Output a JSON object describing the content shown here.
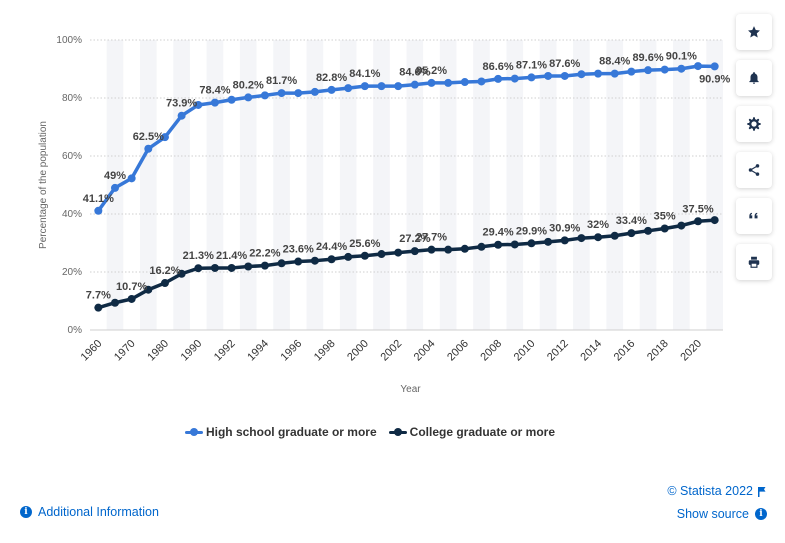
{
  "chart_data": {
    "type": "line",
    "title": "",
    "xlabel": "Year",
    "ylabel": "Percentage of the population",
    "ylim": [
      0,
      100
    ],
    "y_ticks": [
      "0%",
      "20%",
      "40%",
      "60%",
      "80%",
      "100%"
    ],
    "x": [
      1960,
      1965,
      1970,
      1975,
      1980,
      1985,
      1990,
      1991,
      1992,
      1993,
      1994,
      1995,
      1996,
      1997,
      1998,
      1999,
      2000,
      2001,
      2002,
      2003,
      2004,
      2005,
      2006,
      2007,
      2008,
      2009,
      2010,
      2011,
      2012,
      2013,
      2014,
      2015,
      2016,
      2017,
      2018,
      2019,
      2020,
      2021
    ],
    "x_tick_labels": [
      "1960",
      "1970",
      "1980",
      "1990",
      "1992",
      "1994",
      "1996",
      "1998",
      "2000",
      "2002",
      "2004",
      "2006",
      "2008",
      "2010",
      "2012",
      "2014",
      "2016",
      "2018",
      "2020"
    ],
    "x_tick_indices": [
      0,
      2,
      4,
      6,
      8,
      10,
      12,
      14,
      16,
      18,
      20,
      22,
      24,
      26,
      28,
      30,
      32,
      34,
      36
    ],
    "grid": true,
    "legend_position": "bottom",
    "series": [
      {
        "name": "High school graduate or more",
        "color": "#3778d8",
        "values": [
          41.1,
          49.0,
          52.3,
          62.5,
          66.5,
          73.9,
          77.6,
          78.4,
          79.4,
          80.2,
          80.9,
          81.7,
          81.7,
          82.1,
          82.8,
          83.4,
          84.1,
          84.1,
          84.1,
          84.6,
          85.2,
          85.2,
          85.5,
          85.7,
          86.6,
          86.7,
          87.1,
          87.6,
          87.6,
          88.2,
          88.4,
          88.4,
          89.1,
          89.6,
          89.8,
          90.1,
          91.0,
          90.9
        ],
        "labels": [
          {
            "i": 0,
            "text": "41.1%"
          },
          {
            "i": 1,
            "text": "49%"
          },
          {
            "i": 3,
            "text": "62.5%"
          },
          {
            "i": 5,
            "text": "73.9%"
          },
          {
            "i": 7,
            "text": "78.4%"
          },
          {
            "i": 9,
            "text": "80.2%"
          },
          {
            "i": 11,
            "text": "81.7%"
          },
          {
            "i": 14,
            "text": "82.8%"
          },
          {
            "i": 16,
            "text": "84.1%"
          },
          {
            "i": 19,
            "text": "84.6%"
          },
          {
            "i": 20,
            "text": "85.2%"
          },
          {
            "i": 24,
            "text": "86.6%"
          },
          {
            "i": 26,
            "text": "87.1%"
          },
          {
            "i": 28,
            "text": "87.6%"
          },
          {
            "i": 31,
            "text": "88.4%"
          },
          {
            "i": 33,
            "text": "89.6%"
          },
          {
            "i": 35,
            "text": "90.1%"
          },
          {
            "i": 37,
            "text": "90.9%"
          }
        ]
      },
      {
        "name": "College graduate or more",
        "color": "#0f2a44",
        "values": [
          7.7,
          9.4,
          10.7,
          13.9,
          16.2,
          19.4,
          21.3,
          21.4,
          21.4,
          21.9,
          22.2,
          23.0,
          23.6,
          23.9,
          24.4,
          25.2,
          25.6,
          26.2,
          26.7,
          27.2,
          27.7,
          27.7,
          28.0,
          28.7,
          29.4,
          29.5,
          29.9,
          30.4,
          30.9,
          31.7,
          32.0,
          32.5,
          33.4,
          34.2,
          35.0,
          36.0,
          37.5,
          37.9
        ],
        "labels": [
          {
            "i": 0,
            "text": "7.7%"
          },
          {
            "i": 2,
            "text": "10.7%"
          },
          {
            "i": 4,
            "text": "16.2%"
          },
          {
            "i": 6,
            "text": "21.3%"
          },
          {
            "i": 8,
            "text": "21.4%"
          },
          {
            "i": 10,
            "text": "22.2%"
          },
          {
            "i": 12,
            "text": "23.6%"
          },
          {
            "i": 14,
            "text": "24.4%"
          },
          {
            "i": 16,
            "text": "25.6%"
          },
          {
            "i": 19,
            "text": "27.2%"
          },
          {
            "i": 20,
            "text": "27.7%"
          },
          {
            "i": 24,
            "text": "29.4%"
          },
          {
            "i": 26,
            "text": "29.9%"
          },
          {
            "i": 28,
            "text": "30.9%"
          },
          {
            "i": 30,
            "text": "32%"
          },
          {
            "i": 32,
            "text": "33.4%"
          },
          {
            "i": 34,
            "text": "35%"
          },
          {
            "i": 36,
            "text": "37.5%"
          }
        ]
      }
    ]
  },
  "legend": {
    "high_school": "High school graduate or more",
    "college": "College graduate or more"
  },
  "sidebar": {
    "icons": [
      "star-icon",
      "bell-icon",
      "gear-icon",
      "share-icon",
      "quote-icon",
      "print-icon"
    ]
  },
  "footer": {
    "additional_info": "Additional Information",
    "credits": "© Statista 2022",
    "show_source": "Show source"
  },
  "colors": {
    "accent": "#0066cc",
    "series_light": "#3778d8",
    "series_dark": "#0f2a44"
  }
}
